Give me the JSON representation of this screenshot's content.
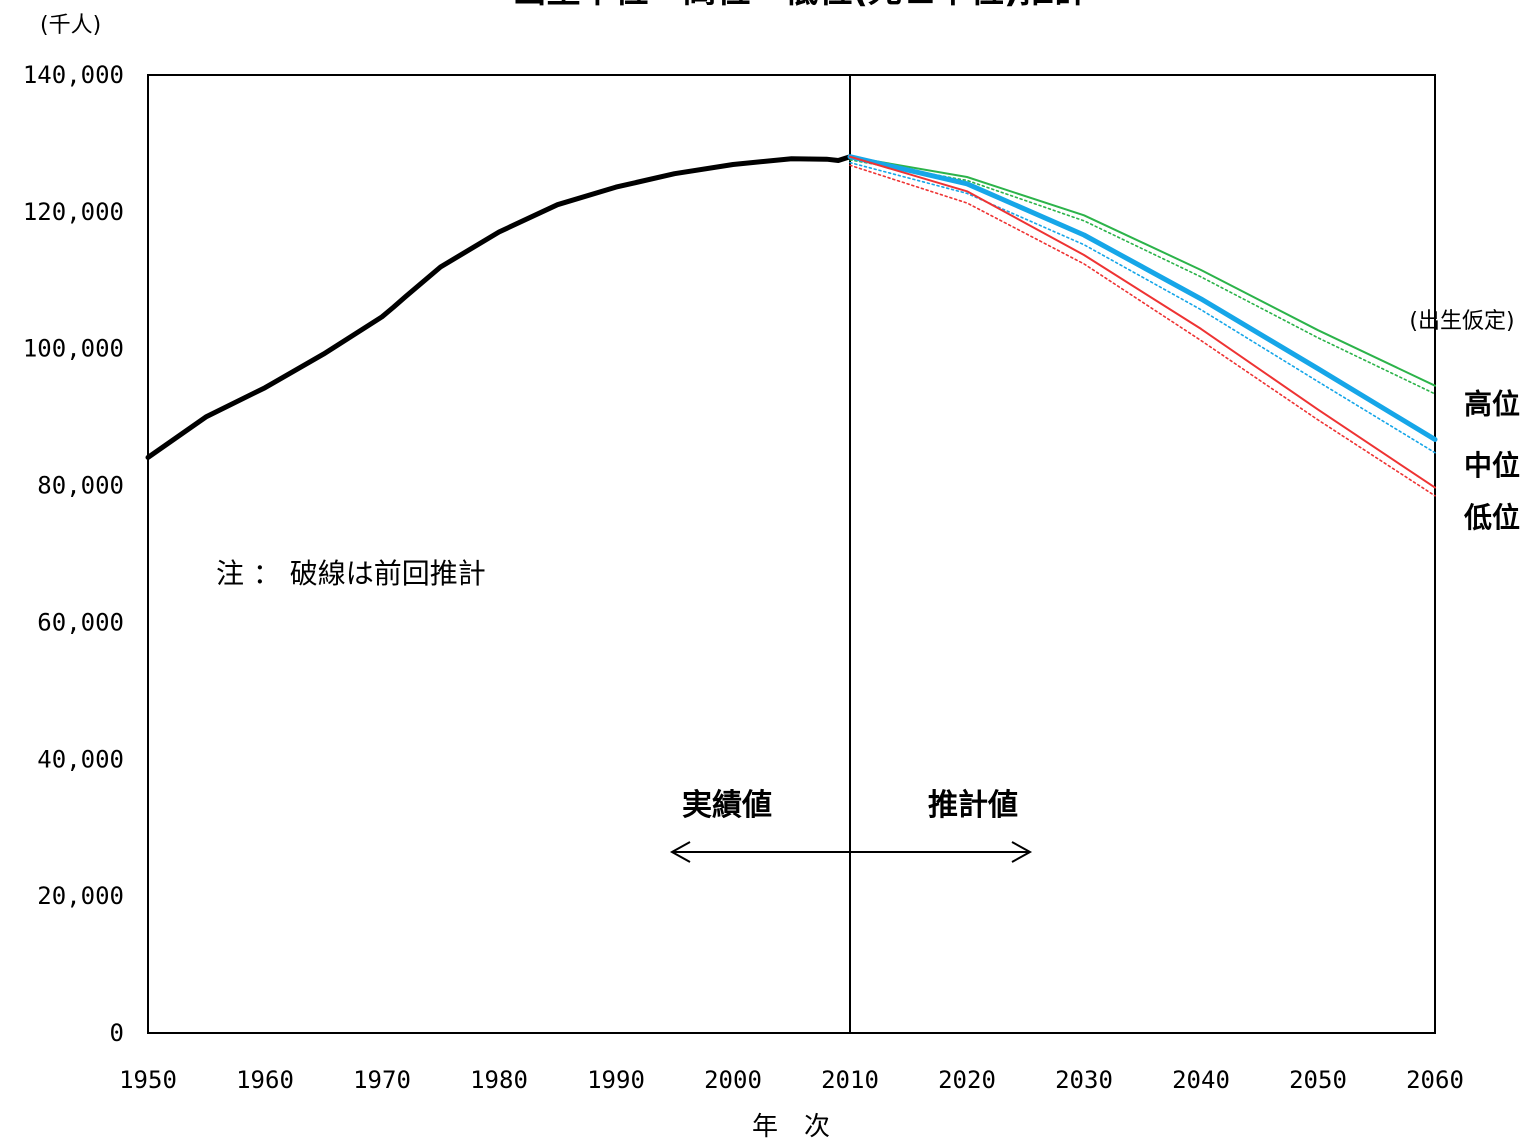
{
  "chart_data": {
    "type": "line",
    "title": "出生中位・高位・低位(死亡中位)推計",
    "ylabel": "(千人)",
    "xlabel": "年　次",
    "xlim": [
      1950,
      2060
    ],
    "ylim": [
      0,
      140000
    ],
    "x_ticks": [
      "1950",
      "1960",
      "1970",
      "1980",
      "1990",
      "2000",
      "2010",
      "2020",
      "2030",
      "2040",
      "2050",
      "2060"
    ],
    "y_ticks": [
      "0",
      "20,000",
      "40,000",
      "60,000",
      "80,000",
      "100,000",
      "120,000",
      "140,000"
    ],
    "grid": false,
    "divider_year": 2010,
    "note": "注 ： 破線は前回推計",
    "actual_label": "実績値",
    "projection_label": "推計値",
    "legend_title": "(出生仮定)",
    "series": [
      {
        "name": "実績値",
        "color": "#000000",
        "style": "solid",
        "points": [
          [
            1950,
            84115
          ],
          [
            1955,
            90077
          ],
          [
            1960,
            94302
          ],
          [
            1965,
            99209
          ],
          [
            1970,
            104665
          ],
          [
            1971,
            106100
          ],
          [
            1972,
            107595
          ],
          [
            1975,
            111940
          ],
          [
            1980,
            117060
          ],
          [
            1985,
            121049
          ],
          [
            1990,
            123611
          ],
          [
            1995,
            125570
          ],
          [
            2000,
            126926
          ],
          [
            2005,
            127768
          ],
          [
            2008,
            127692
          ],
          [
            2009,
            127510
          ],
          [
            2010,
            128057
          ]
        ]
      },
      {
        "name": "高位",
        "color": "#2cb34a",
        "style": "solid",
        "points": [
          [
            2010,
            128057
          ],
          [
            2020,
            125100
          ],
          [
            2030,
            119500
          ],
          [
            2040,
            111500
          ],
          [
            2050,
            102700
          ],
          [
            2060,
            94600
          ]
        ]
      },
      {
        "name": "中位",
        "color": "#16a6e8",
        "style": "solid",
        "points": [
          [
            2010,
            128057
          ],
          [
            2020,
            124100
          ],
          [
            2030,
            116618
          ],
          [
            2040,
            107276
          ],
          [
            2050,
            97076
          ],
          [
            2060,
            86737
          ]
        ]
      },
      {
        "name": "低位",
        "color": "#ee3333",
        "style": "solid",
        "points": [
          [
            2010,
            128057
          ],
          [
            2020,
            123000
          ],
          [
            2030,
            113700
          ],
          [
            2040,
            102900
          ],
          [
            2050,
            91100
          ],
          [
            2060,
            79700
          ]
        ]
      },
      {
        "name": "高位",
        "color": "#2cb34a",
        "style": "dotted",
        "points": [
          [
            2010,
            127600
          ],
          [
            2020,
            124600
          ],
          [
            2030,
            118700
          ],
          [
            2040,
            110500
          ],
          [
            2050,
            101600
          ],
          [
            2060,
            93400
          ]
        ]
      },
      {
        "name": "中位",
        "color": "#16a6e8",
        "style": "dotted",
        "points": [
          [
            2010,
            127200
          ],
          [
            2020,
            122700
          ],
          [
            2030,
            115200
          ],
          [
            2040,
            105700
          ],
          [
            2050,
            95200
          ],
          [
            2060,
            84800
          ]
        ]
      },
      {
        "name": "低位",
        "color": "#ee3333",
        "style": "dotted",
        "points": [
          [
            2010,
            126800
          ],
          [
            2020,
            121300
          ],
          [
            2030,
            112400
          ],
          [
            2040,
            101200
          ],
          [
            2050,
            89600
          ],
          [
            2060,
            78500
          ]
        ]
      }
    ],
    "end_labels": [
      {
        "text": "高位",
        "value": 92000
      },
      {
        "text": "中位",
        "value": 83000
      },
      {
        "text": "低位",
        "value": 75400
      }
    ]
  }
}
